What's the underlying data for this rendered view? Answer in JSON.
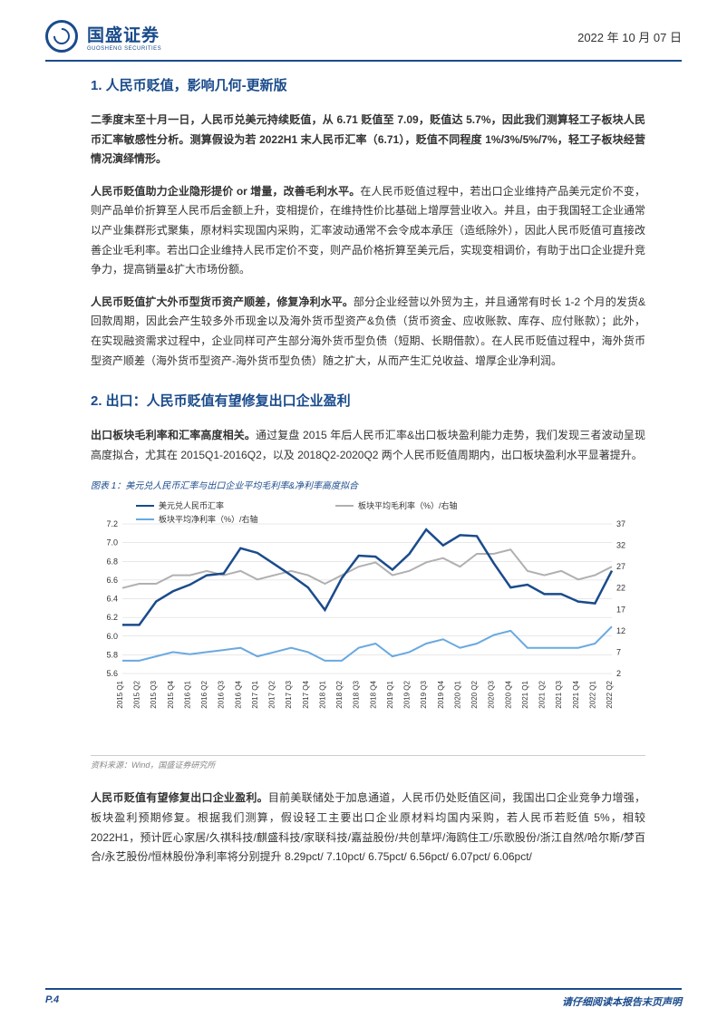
{
  "header": {
    "company": "国盛证券",
    "company_sub": "GUOSHENG SECURITIES",
    "date": "2022 年 10 月 07 日"
  },
  "section1": {
    "title": "1. 人民币贬值，影响几何-更新版",
    "p1_bold": "二季度末至十月一日，人民币兑美元持续贬值，从 6.71 贬值至 7.09，贬值达 5.7%，因此我们测算轻工子板块人民币汇率敏感性分析。测算假设为若 2022H1 末人民币汇率（6.71），贬值不同程度 1%/3%/5%/7%，轻工子板块经营情况演绎情形。",
    "p2_lead": "人民币贬值助力企业隐形提价 or 增量，改善毛利水平。",
    "p2_body": "在人民币贬值过程中，若出口企业维持产品美元定价不变，则产品单价折算至人民币后金额上升，变相提价，在维持性价比基础上增厚营业收入。并且，由于我国轻工企业通常以产业集群形式聚集，原材料实现国内采购，汇率波动通常不会令成本承压（造纸除外），因此人民币贬值可直接改善企业毛利率。若出口企业维持人民币定价不变，则产品价格折算至美元后，实现变相调价，有助于出口企业提升竞争力，提高销量&扩大市场份额。",
    "p3_lead": "人民币贬值扩大外币型货币资产顺差，修复净利水平。",
    "p3_body": "部分企业经营以外贸为主，并且通常有时长 1-2 个月的发货&回款周期，因此会产生较多外币现金以及海外货币型资产&负债（货币资金、应收账款、库存、应付账款）；此外，在实现融资需求过程中，企业同样可产生部分海外货币型负债（短期、长期借款）。在人民币贬值过程中，海外货币型资产顺差（海外货币型资产-海外货币型负债）随之扩大，从而产生汇兑收益、增厚企业净利润。"
  },
  "section2": {
    "title": "2. 出口：人民币贬值有望修复出口企业盈利",
    "p1_lead": "出口板块毛利率和汇率高度相关。",
    "p1_body": "通过复盘 2015 年后人民币汇率&出口板块盈利能力走势，我们发现三者波动呈现高度拟合，尤其在 2015Q1-2016Q2，以及 2018Q2-2020Q2 两个人民币贬值周期内，出口板块盈利水平显著提升。"
  },
  "chart": {
    "title": "图表 1：美元兑人民币汇率与出口企业平均毛利率&净利率高度拟合",
    "legend": [
      "美元兑人民币汇率",
      "板块平均毛利率（%）/右轴",
      "板块平均净利率（%）/右轴"
    ],
    "legend_colors": [
      "#1a4b8c",
      "#b0b0b0",
      "#6aa9e0"
    ],
    "x_labels": [
      "2015 Q1",
      "2015 Q2",
      "2015 Q3",
      "2015 Q4",
      "2016 Q1",
      "2016 Q2",
      "2016 Q3",
      "2016 Q4",
      "2017 Q1",
      "2017 Q2",
      "2017 Q3",
      "2017 Q4",
      "2018 Q1",
      "2018 Q2",
      "2018 Q3",
      "2018 Q4",
      "2019 Q1",
      "2019 Q2",
      "2019 Q3",
      "2019 Q4",
      "2020 Q1",
      "2020 Q2",
      "2020 Q3",
      "2020 Q4",
      "2021 Q1",
      "2021 Q2",
      "2021 Q3",
      "2021 Q4",
      "2022 Q1",
      "2022 Q2"
    ],
    "left_axis": {
      "min": 5.6,
      "max": 7.2,
      "step": 0.2
    },
    "right_axis": {
      "min": 2,
      "max": 37,
      "step": 5
    },
    "series_exchange": [
      6.12,
      6.12,
      6.37,
      6.48,
      6.55,
      6.65,
      6.67,
      6.94,
      6.89,
      6.77,
      6.65,
      6.52,
      6.28,
      6.62,
      6.86,
      6.85,
      6.71,
      6.88,
      7.14,
      6.97,
      7.08,
      7.07,
      6.78,
      6.52,
      6.55,
      6.45,
      6.45,
      6.37,
      6.35,
      6.7
    ],
    "series_gross": [
      22,
      23,
      23,
      25,
      25,
      26,
      25,
      26,
      24,
      25,
      26,
      25,
      23,
      25,
      27,
      28,
      25,
      26,
      28,
      29,
      27,
      30,
      30,
      31,
      26,
      25,
      26,
      24,
      25,
      27
    ],
    "series_net": [
      5,
      5,
      6,
      7,
      6.5,
      7,
      7.5,
      8,
      6,
      7,
      8,
      7,
      5,
      5,
      8,
      9,
      6,
      7,
      9,
      10,
      8,
      9,
      11,
      12,
      8,
      8,
      8,
      8,
      9,
      13
    ],
    "source": "资料来源：Wind，国盛证券研究所",
    "bg": "#ffffff",
    "grid_color": "#d0d0d0"
  },
  "section3": {
    "p1_lead": "人民币贬值有望修复出口企业盈利。",
    "p1_body": "目前美联储处于加息通道，人民币仍处贬值区间，我国出口企业竞争力增强，板块盈利预期修复。根据我们测算，假设轻工主要出口企业原材料均国内采购，若人民币若贬值 5%，相较 2022H1，预计匠心家居/久祺科技/麒盛科技/家联科技/嘉益股份/共创草坪/海鸥住工/乐歌股份/浙江自然/哈尔斯/梦百合/永艺股份/恒林股份净利率将分别提升 8.29pct/ 7.10pct/ 6.75pct/ 6.56pct/ 6.07pct/ 6.06pct/"
  },
  "footer": {
    "page": "P.4",
    "text": "请仔细阅读本报告末页声明"
  }
}
